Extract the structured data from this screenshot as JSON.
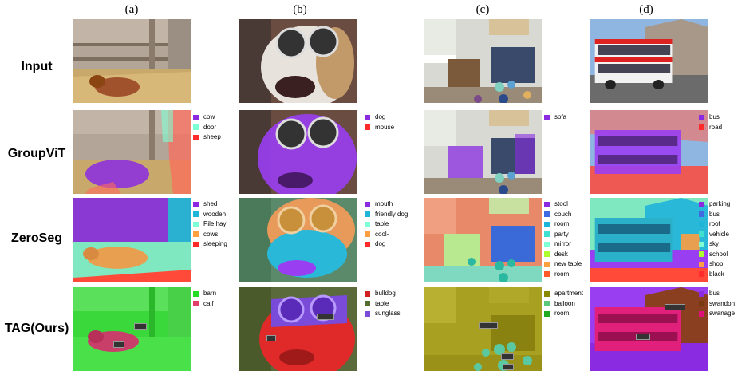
{
  "columns": [
    "(a)",
    "(b)",
    "(c)",
    "(d)"
  ],
  "rows": [
    "Input",
    "GroupViT",
    "ZeroSeg",
    "TAG(Ours)"
  ],
  "legends": {
    "groupvit": {
      "a": [
        {
          "label": "cow",
          "color": "#8a2be2"
        },
        {
          "label": "door",
          "color": "#7fffd4"
        },
        {
          "label": "sheep",
          "color": "#ff2a2a"
        }
      ],
      "b": [
        {
          "label": "dog",
          "color": "#8a2be2"
        },
        {
          "label": "mouse",
          "color": "#ff2a2a"
        }
      ],
      "c": [
        {
          "label": "sofa",
          "color": "#8a2be2"
        }
      ],
      "d": [
        {
          "label": "bus",
          "color": "#8a2be2"
        },
        {
          "label": "road",
          "color": "#ff2a2a"
        }
      ]
    },
    "zeroseg": {
      "a": [
        {
          "label": "shed",
          "color": "#8a2be2"
        },
        {
          "label": "wooden",
          "color": "#1fb5d8"
        },
        {
          "label": "Pile hay",
          "color": "#7fffd4"
        },
        {
          "label": "cows",
          "color": "#ffa040"
        },
        {
          "label": "sleeping",
          "color": "#ff2a2a"
        }
      ],
      "b": [
        {
          "label": "mouth",
          "color": "#8a2be2"
        },
        {
          "label": "friendly dog",
          "color": "#1fb5d8"
        },
        {
          "label": "table",
          "color": "#7fffd4"
        },
        {
          "label": "cool-",
          "color": "#ffa040"
        },
        {
          "label": "dog",
          "color": "#ff2a2a"
        }
      ],
      "c": [
        {
          "label": "stool",
          "color": "#8a2be2"
        },
        {
          "label": "couch",
          "color": "#4169e1"
        },
        {
          "label": "room",
          "color": "#1fb5d8"
        },
        {
          "label": "party",
          "color": "#40e0d0"
        },
        {
          "label": "mirror",
          "color": "#7fffd4"
        },
        {
          "label": "desk",
          "color": "#adff2f"
        },
        {
          "label": "new table",
          "color": "#ffa040"
        },
        {
          "label": "room",
          "color": "#ff5a2a"
        }
      ],
      "d": [
        {
          "label": "parking",
          "color": "#8a2be2"
        },
        {
          "label": "bus",
          "color": "#4169e1"
        },
        {
          "label": "roof",
          "color": "#1fb5d8"
        },
        {
          "label": "vehicle",
          "color": "#40e0d0"
        },
        {
          "label": "sky",
          "color": "#7fffd4"
        },
        {
          "label": "school",
          "color": "#adff2f"
        },
        {
          "label": "shop",
          "color": "#ffa040"
        },
        {
          "label": "black",
          "color": "#ff2a2a"
        }
      ]
    },
    "tag": {
      "a": [
        {
          "label": "barn",
          "color": "#22dd22"
        },
        {
          "label": "calf",
          "color": "#e0406a"
        }
      ],
      "b": [
        {
          "label": "bulldog",
          "color": "#d22020"
        },
        {
          "label": "table",
          "color": "#556b2f"
        },
        {
          "label": "sunglass",
          "color": "#7a4ad8"
        }
      ],
      "c": [
        {
          "label": "apartment",
          "color": "#8a8a00"
        },
        {
          "label": "balloon",
          "color": "#5ac87a"
        },
        {
          "label": "room",
          "color": "#22aa22"
        }
      ],
      "d": [
        {
          "label": "bus",
          "color": "#8a2be2"
        },
        {
          "label": "swandon",
          "color": "#7a3a10"
        },
        {
          "label": "swanage",
          "color": "#e0107a"
        }
      ]
    }
  }
}
